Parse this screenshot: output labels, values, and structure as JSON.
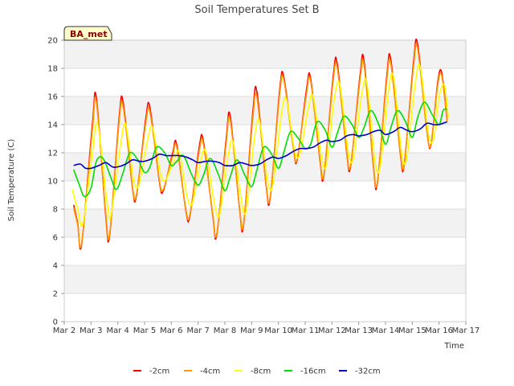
{
  "chart_data": {
    "type": "line",
    "title": "Soil Temperatures Set B",
    "xlabel": "Time",
    "ylabel": "Soil Temperature (C)",
    "x_tick_labels": [
      "Mar 2",
      "Mar 3",
      "Mar 4",
      "Mar 5",
      "Mar 6",
      "Mar 7",
      "Mar 8",
      "Mar 9",
      "Mar 10",
      "Mar 11",
      "Mar 12",
      "Mar 13",
      "Mar 14",
      "Mar 15",
      "Mar 16",
      "Mar 17"
    ],
    "x_tick_values": [
      2,
      3,
      4,
      5,
      6,
      7,
      8,
      9,
      10,
      11,
      12,
      13,
      14,
      15,
      16,
      17
    ],
    "xlim": [
      2,
      17
    ],
    "ylim": [
      0,
      20
    ],
    "y_ticks": [
      0,
      2,
      4,
      6,
      8,
      10,
      12,
      14,
      16,
      18,
      20
    ],
    "badge": "BA_met",
    "legend_position": "bottom",
    "series": [
      {
        "name": "-2cm",
        "color": "#ff0000",
        "x": [
          2.35,
          2.5,
          2.65,
          3.05,
          3.2,
          3.55,
          3.7,
          4.05,
          4.2,
          4.55,
          4.7,
          5.05,
          5.2,
          5.55,
          5.7,
          6.05,
          6.2,
          6.55,
          6.7,
          7.05,
          7.2,
          7.55,
          7.7,
          8.05,
          8.2,
          8.55,
          8.7,
          9.05,
          9.2,
          9.55,
          9.7,
          10.05,
          10.2,
          10.55,
          10.7,
          11.05,
          11.2,
          11.55,
          11.7,
          12.05,
          12.2,
          12.55,
          12.7,
          13.05,
          13.2,
          13.55,
          13.7,
          14.05,
          14.2,
          14.55,
          14.7,
          15.05,
          15.2,
          15.55,
          15.7,
          15.95,
          16.1,
          16.3
        ],
        "y": [
          8.3,
          7.0,
          5.5,
          14.0,
          15.9,
          7.5,
          6.2,
          14.5,
          15.6,
          9.5,
          9.0,
          14.5,
          15.2,
          10.0,
          9.3,
          12.0,
          12.6,
          7.8,
          7.6,
          12.5,
          12.8,
          7.5,
          6.2,
          13.0,
          14.6,
          8.0,
          6.9,
          15.0,
          16.3,
          9.5,
          8.9,
          16.5,
          17.4,
          12.5,
          11.5,
          16.5,
          17.3,
          11.5,
          10.4,
          17.5,
          18.3,
          12.0,
          11.1,
          17.5,
          18.5,
          11.0,
          9.9,
          17.5,
          18.6,
          12.0,
          11.2,
          18.5,
          19.7,
          13.5,
          12.6,
          17.0,
          17.7,
          14.3
        ]
      },
      {
        "name": "-4cm",
        "color": "#ff9900",
        "x": [
          2.35,
          2.5,
          2.65,
          3.05,
          3.2,
          3.55,
          3.7,
          4.05,
          4.2,
          4.55,
          4.7,
          5.05,
          5.2,
          5.55,
          5.7,
          6.05,
          6.2,
          6.55,
          6.7,
          7.05,
          7.2,
          7.55,
          7.7,
          8.05,
          8.2,
          8.55,
          8.7,
          9.05,
          9.2,
          9.55,
          9.7,
          10.05,
          10.2,
          10.55,
          10.7,
          11.05,
          11.2,
          11.55,
          11.7,
          12.05,
          12.2,
          12.55,
          12.7,
          13.05,
          13.2,
          13.55,
          13.7,
          14.05,
          14.2,
          14.55,
          14.7,
          15.05,
          15.2,
          15.55,
          15.7,
          15.95,
          16.1,
          16.3
        ],
        "y": [
          8.1,
          6.9,
          5.6,
          13.6,
          15.6,
          7.7,
          6.3,
          14.2,
          15.3,
          9.6,
          9.1,
          14.2,
          14.9,
          10.1,
          9.4,
          11.8,
          12.4,
          7.9,
          7.7,
          12.2,
          12.6,
          7.6,
          6.3,
          12.7,
          14.3,
          8.1,
          7.0,
          14.6,
          15.9,
          9.6,
          9.0,
          16.2,
          17.2,
          12.4,
          11.6,
          16.2,
          17.1,
          11.6,
          10.5,
          17.2,
          18.0,
          12.1,
          11.2,
          17.2,
          18.2,
          11.1,
          10.0,
          17.2,
          18.3,
          12.1,
          11.3,
          18.2,
          19.4,
          13.4,
          12.7,
          16.8,
          17.5,
          14.2
        ]
      },
      {
        "name": "-8cm",
        "color": "#ffff00",
        "x": [
          2.3,
          2.5,
          2.7,
          3.05,
          3.25,
          3.6,
          3.75,
          4.1,
          4.3,
          4.6,
          4.8,
          5.1,
          5.3,
          5.6,
          5.8,
          6.1,
          6.3,
          6.6,
          6.8,
          7.1,
          7.3,
          7.6,
          7.8,
          8.1,
          8.3,
          8.6,
          8.8,
          9.1,
          9.3,
          9.6,
          9.8,
          10.1,
          10.3,
          10.6,
          10.8,
          11.1,
          11.3,
          11.6,
          11.8,
          12.1,
          12.3,
          12.6,
          12.8,
          13.1,
          13.3,
          13.6,
          13.8,
          14.1,
          14.3,
          14.6,
          14.8,
          15.1,
          15.3,
          15.6,
          15.8,
          16.0,
          16.2,
          16.35
        ],
        "y": [
          9.4,
          8.0,
          7.0,
          12.0,
          14.0,
          8.5,
          7.6,
          12.5,
          14.0,
          10.0,
          9.8,
          12.8,
          13.8,
          10.5,
          10.1,
          11.5,
          12.0,
          8.8,
          8.5,
          11.5,
          12.0,
          8.5,
          7.6,
          11.5,
          12.8,
          8.8,
          7.9,
          13.0,
          14.2,
          10.0,
          9.8,
          14.6,
          15.8,
          12.2,
          11.9,
          15.0,
          16.0,
          11.8,
          11.2,
          16.0,
          16.8,
          12.2,
          11.6,
          16.0,
          17.0,
          11.5,
          11.0,
          16.2,
          17.4,
          12.0,
          11.7,
          16.8,
          18.1,
          13.4,
          13.0,
          16.0,
          16.8,
          14.5
        ]
      },
      {
        "name": "-16cm",
        "color": "#00dd00",
        "x": [
          2.35,
          2.55,
          2.75,
          3.0,
          3.2,
          3.45,
          3.75,
          3.95,
          4.2,
          4.45,
          4.75,
          5.0,
          5.2,
          5.45,
          5.75,
          6.0,
          6.2,
          6.45,
          6.75,
          7.0,
          7.2,
          7.45,
          7.75,
          8.0,
          8.2,
          8.45,
          8.75,
          9.0,
          9.2,
          9.45,
          9.75,
          10.0,
          10.2,
          10.45,
          10.75,
          11.0,
          11.2,
          11.45,
          11.75,
          12.0,
          12.2,
          12.45,
          12.75,
          13.0,
          13.2,
          13.45,
          13.75,
          14.0,
          14.2,
          14.45,
          14.75,
          15.0,
          15.2,
          15.45,
          15.75,
          16.0,
          16.15,
          16.3
        ],
        "y": [
          10.8,
          9.8,
          8.9,
          9.5,
          11.4,
          11.6,
          10.2,
          9.4,
          10.6,
          12.0,
          11.5,
          10.6,
          11.0,
          12.4,
          12.0,
          11.1,
          11.4,
          11.8,
          10.5,
          9.7,
          10.4,
          11.6,
          10.5,
          9.3,
          10.3,
          11.5,
          10.4,
          9.6,
          10.8,
          12.4,
          11.9,
          10.9,
          12.0,
          13.5,
          13.0,
          12.3,
          12.6,
          14.2,
          13.6,
          12.4,
          13.4,
          14.6,
          14.0,
          13.1,
          13.8,
          15.0,
          14.0,
          12.6,
          13.8,
          15.0,
          14.2,
          13.1,
          14.5,
          15.6,
          14.7,
          14.0,
          15.0,
          15.1
        ]
      },
      {
        "name": "-32cm",
        "color": "#0000cc",
        "x": [
          2.35,
          2.6,
          2.8,
          3.0,
          3.3,
          3.55,
          3.8,
          4.0,
          4.3,
          4.55,
          4.8,
          5.0,
          5.3,
          5.55,
          5.8,
          6.0,
          6.3,
          6.55,
          6.8,
          7.0,
          7.3,
          7.55,
          7.8,
          8.0,
          8.3,
          8.55,
          8.8,
          9.0,
          9.3,
          9.55,
          9.8,
          10.0,
          10.3,
          10.55,
          10.8,
          11.0,
          11.3,
          11.55,
          11.8,
          12.0,
          12.3,
          12.55,
          12.8,
          13.0,
          13.3,
          13.55,
          13.8,
          14.0,
          14.3,
          14.55,
          14.8,
          15.0,
          15.3,
          15.55,
          15.8,
          16.0,
          16.15,
          16.3
        ],
        "y": [
          11.1,
          11.2,
          10.9,
          10.9,
          11.1,
          11.3,
          11.0,
          11.0,
          11.2,
          11.5,
          11.4,
          11.4,
          11.6,
          11.9,
          11.8,
          11.8,
          11.8,
          11.7,
          11.5,
          11.3,
          11.4,
          11.4,
          11.3,
          11.1,
          11.1,
          11.3,
          11.2,
          11.1,
          11.2,
          11.5,
          11.7,
          11.6,
          11.8,
          12.1,
          12.3,
          12.3,
          12.4,
          12.7,
          12.9,
          12.8,
          12.9,
          13.2,
          13.3,
          13.2,
          13.3,
          13.5,
          13.6,
          13.3,
          13.5,
          13.8,
          13.6,
          13.5,
          13.7,
          14.1,
          14.0,
          14.0,
          14.1,
          14.2
        ]
      }
    ]
  }
}
